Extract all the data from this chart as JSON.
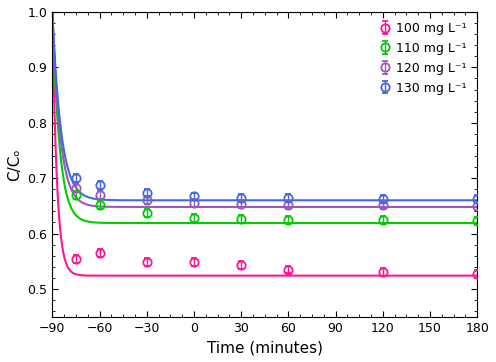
{
  "title": "",
  "xlabel": "Time (minutes)",
  "ylabel": "C/Cₒ",
  "xlim": [
    -90,
    180
  ],
  "ylim": [
    0.45,
    1.0
  ],
  "xticks": [
    -90,
    -60,
    -30,
    0,
    30,
    60,
    90,
    120,
    150,
    180
  ],
  "yticks": [
    0.5,
    0.6,
    0.7,
    0.8,
    0.9,
    1.0
  ],
  "series": [
    {
      "label": "100 mg L⁻¹",
      "color": "#FF1493",
      "data_x": [
        -75,
        -60,
        -30,
        0,
        30,
        60,
        120,
        180
      ],
      "data_y": [
        0.554,
        0.565,
        0.548,
        0.548,
        0.543,
        0.535,
        0.53,
        0.527
      ],
      "data_yerr": [
        0.007,
        0.007,
        0.007,
        0.007,
        0.007,
        0.007,
        0.007,
        0.007
      ],
      "curve_plateau": 0.524,
      "curve_k": 0.35
    },
    {
      "label": "110 mg L⁻¹",
      "color": "#00CC00",
      "data_x": [
        -75,
        -60,
        -30,
        0,
        30,
        60,
        120,
        180
      ],
      "data_y": [
        0.67,
        0.652,
        0.637,
        0.628,
        0.626,
        0.625,
        0.624,
        0.623
      ],
      "data_yerr": [
        0.007,
        0.007,
        0.007,
        0.007,
        0.007,
        0.007,
        0.007,
        0.007
      ],
      "curve_plateau": 0.619,
      "curve_k": 0.22
    },
    {
      "label": "120 mg L⁻¹",
      "color": "#9B59B6",
      "data_x": [
        -75,
        -60,
        -30,
        0,
        30,
        60,
        120,
        180
      ],
      "data_y": [
        0.682,
        0.67,
        0.66,
        0.655,
        0.653,
        0.652,
        0.651,
        0.65
      ],
      "data_yerr": [
        0.007,
        0.007,
        0.007,
        0.007,
        0.007,
        0.007,
        0.007,
        0.007
      ],
      "curve_plateau": 0.648,
      "curve_k": 0.2
    },
    {
      "label": "130 mg L⁻¹",
      "color": "#4169E1",
      "data_x": [
        -75,
        -60,
        -30,
        0,
        30,
        60,
        120,
        180
      ],
      "data_y": [
        0.7,
        0.688,
        0.674,
        0.667,
        0.665,
        0.664,
        0.663,
        0.663
      ],
      "data_yerr": [
        0.007,
        0.007,
        0.007,
        0.007,
        0.007,
        0.007,
        0.007,
        0.007
      ],
      "curve_plateau": 0.66,
      "curve_k": 0.18
    }
  ],
  "legend_fontsize": 9,
  "axis_fontsize": 11,
  "tick_fontsize": 9
}
